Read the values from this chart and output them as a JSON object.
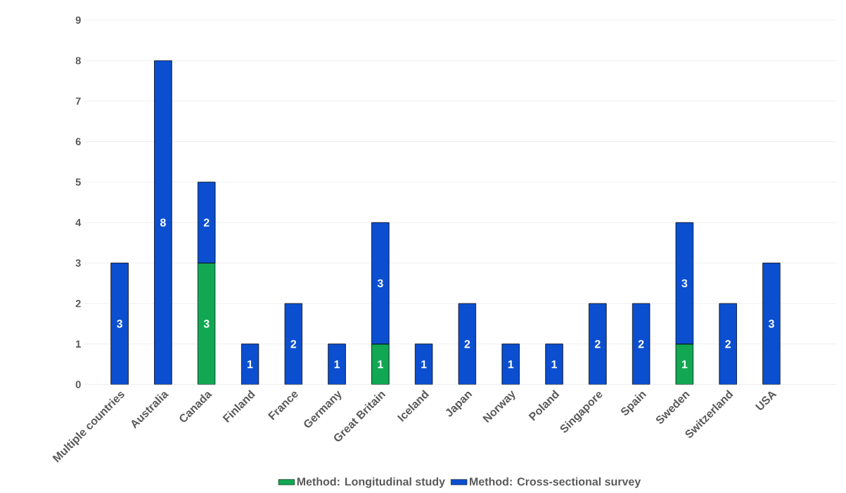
{
  "chart_data": {
    "type": "bar",
    "stacked": true,
    "categories": [
      "Multiple countries",
      "Australia",
      "Canada",
      "Finland",
      "France",
      "Germany",
      "Great Britain",
      "Iceland",
      "Japan",
      "Norway",
      "Poland",
      "Singapore",
      "Spain",
      "Sweden",
      "Switzerland",
      "USA"
    ],
    "series": [
      {
        "name": "Method: Longitudinal study",
        "color": "#12a853",
        "values": [
          null,
          null,
          3,
          null,
          null,
          null,
          1,
          null,
          null,
          null,
          null,
          null,
          null,
          1,
          null,
          null
        ]
      },
      {
        "name": "Method: Cross-sectional survey",
        "color": "#0b4fd0",
        "values": [
          3,
          8,
          2,
          1,
          2,
          1,
          3,
          1,
          2,
          1,
          1,
          2,
          2,
          3,
          2,
          3
        ]
      }
    ],
    "ylim": [
      0,
      9
    ],
    "yticks": [
      0,
      1,
      2,
      3,
      4,
      5,
      6,
      7,
      8,
      9
    ],
    "grid": "y",
    "legend": "bottom",
    "data_labels": true
  }
}
